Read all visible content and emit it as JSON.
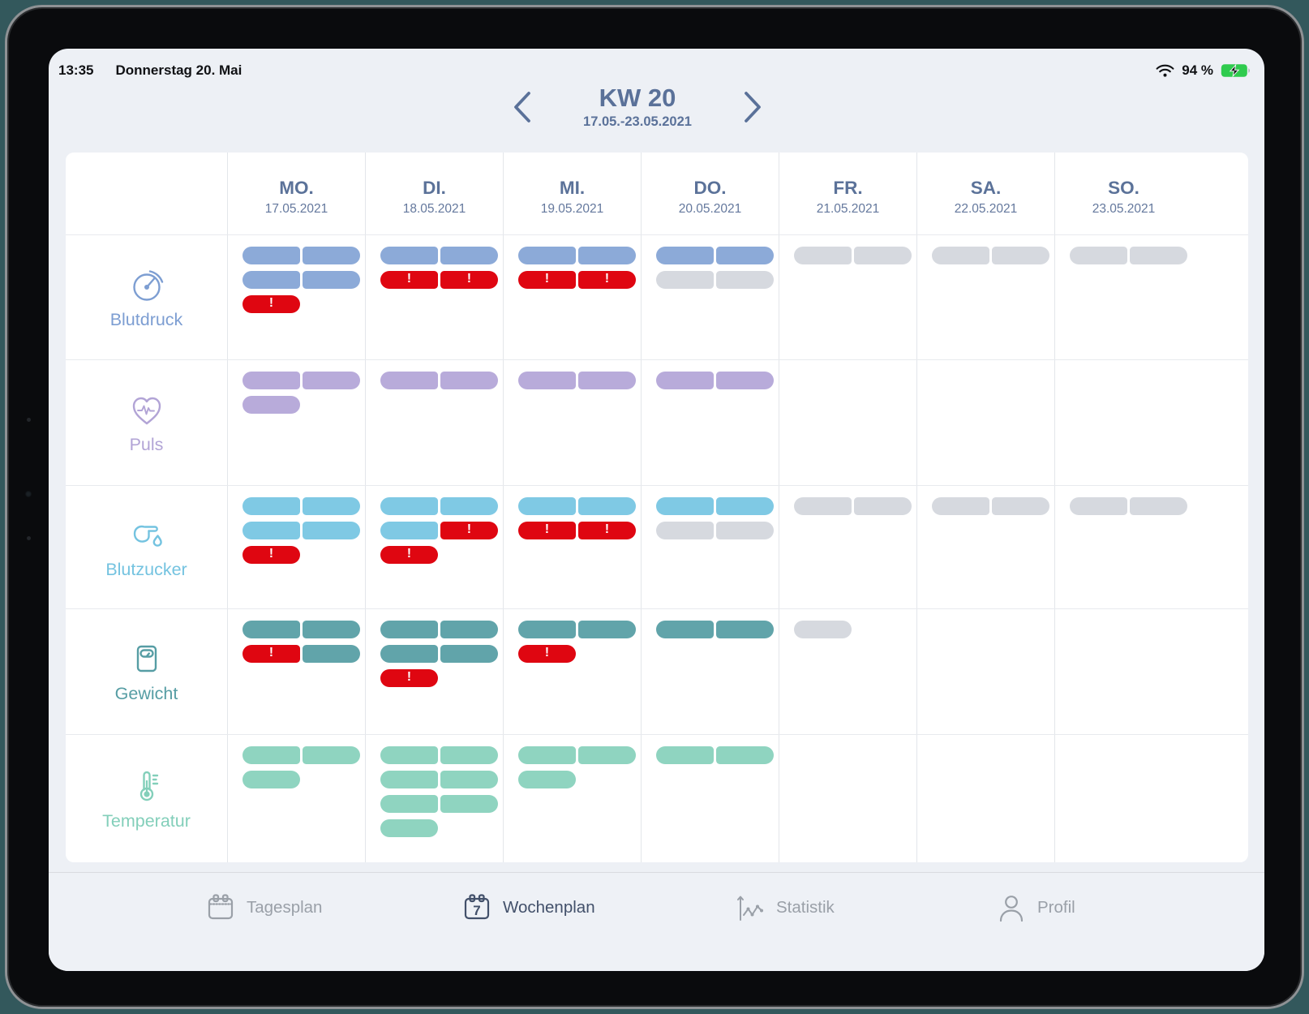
{
  "status_bar": {
    "time": "13:35",
    "date": "Donnerstag 20. Mai",
    "wifi_icon": "wifi-icon",
    "battery_percent": "94 %",
    "battery_icon": "battery-charging-icon",
    "battery_state": "charging"
  },
  "header": {
    "title": "KW 20",
    "range": "17.05.-23.05.2021",
    "prev_icon": "chevron-left-icon",
    "next_icon": "chevron-right-icon"
  },
  "alert_glyph": "!",
  "colors": {
    "alert": "#df0611",
    "planned": "#d6d9df",
    "header_text": "#5a7199",
    "screen_bg": "#edf0f5",
    "card_bg": "#ffffff",
    "tab_active": "#42506a",
    "tab_inactive": "#9aa0a8",
    "battery_green": "#2fcb4e"
  },
  "days": [
    {
      "label": "MO.",
      "date": "17.05.2021"
    },
    {
      "label": "DI.",
      "date": "18.05.2021"
    },
    {
      "label": "MI.",
      "date": "19.05.2021"
    },
    {
      "label": "DO.",
      "date": "20.05.2021"
    },
    {
      "label": "FR.",
      "date": "21.05.2021"
    },
    {
      "label": "SA.",
      "date": "22.05.2021"
    },
    {
      "label": "SO.",
      "date": "23.05.2021"
    }
  ],
  "rows": [
    {
      "id": "blutdruck",
      "label": "Blutdruck",
      "icon": "gauge-icon",
      "color": "#8caad8",
      "label_color": "#7d9ed2",
      "cells": [
        [
          [
            "ok",
            "ok"
          ],
          [
            "ok",
            "ok"
          ],
          [
            "alert"
          ]
        ],
        [
          [
            "ok",
            "ok"
          ],
          [
            "alert",
            "alert"
          ]
        ],
        [
          [
            "ok",
            "ok"
          ],
          [
            "alert",
            "alert"
          ]
        ],
        [
          [
            "ok",
            "ok"
          ],
          [
            "planned",
            "planned"
          ]
        ],
        [
          [
            "planned",
            "planned"
          ]
        ],
        [
          [
            "planned",
            "planned"
          ]
        ],
        [
          [
            "planned",
            "planned"
          ]
        ]
      ]
    },
    {
      "id": "puls",
      "label": "Puls",
      "icon": "heart-pulse-icon",
      "color": "#b8abda",
      "label_color": "#b2a4d6",
      "cells": [
        [
          [
            "ok",
            "ok"
          ],
          [
            "ok"
          ]
        ],
        [
          [
            "ok",
            "ok"
          ]
        ],
        [
          [
            "ok",
            "ok"
          ]
        ],
        [
          [
            "ok",
            "ok"
          ]
        ],
        [],
        [],
        []
      ]
    },
    {
      "id": "blutzucker",
      "label": "Blutzucker",
      "icon": "blood-drop-hand-icon",
      "color": "#7fc9e4",
      "label_color": "#74c3e0",
      "cells": [
        [
          [
            "ok",
            "ok"
          ],
          [
            "ok",
            "ok"
          ],
          [
            "alert"
          ]
        ],
        [
          [
            "ok",
            "ok"
          ],
          [
            "ok",
            "alert"
          ],
          [
            "alert"
          ]
        ],
        [
          [
            "ok",
            "ok"
          ],
          [
            "alert",
            "alert"
          ]
        ],
        [
          [
            "ok",
            "ok"
          ],
          [
            "planned",
            "planned"
          ]
        ],
        [
          [
            "planned",
            "planned"
          ]
        ],
        [
          [
            "planned",
            "planned"
          ]
        ],
        [
          [
            "planned",
            "planned"
          ]
        ]
      ]
    },
    {
      "id": "gewicht",
      "label": "Gewicht",
      "icon": "scale-icon",
      "color": "#61a4aa",
      "label_color": "#569da4",
      "cells": [
        [
          [
            "ok",
            "ok"
          ],
          [
            "alert",
            "ok"
          ]
        ],
        [
          [
            "ok",
            "ok"
          ],
          [
            "ok",
            "ok"
          ],
          [
            "alert"
          ]
        ],
        [
          [
            "ok",
            "ok"
          ],
          [
            "alert"
          ]
        ],
        [
          [
            "ok",
            "ok"
          ]
        ],
        [
          [
            "planned"
          ]
        ],
        [],
        []
      ]
    },
    {
      "id": "temperatur",
      "label": "Temperatur",
      "icon": "thermometer-icon",
      "color": "#8fd4c0",
      "label_color": "#83cfba",
      "cells": [
        [
          [
            "ok",
            "ok"
          ],
          [
            "ok"
          ]
        ],
        [
          [
            "ok",
            "ok"
          ],
          [
            "ok",
            "ok"
          ],
          [
            "ok",
            "ok"
          ],
          [
            "ok"
          ]
        ],
        [
          [
            "ok",
            "ok"
          ],
          [
            "ok"
          ]
        ],
        [
          [
            "ok",
            "ok"
          ]
        ],
        [],
        [],
        []
      ]
    }
  ],
  "tab_bar": [
    {
      "label": "Tagesplan",
      "icon": "calendar-icon",
      "active": false
    },
    {
      "label": "Wochenplan",
      "icon": "calendar-week-icon",
      "active": true
    },
    {
      "label": "Statistik",
      "icon": "chart-icon",
      "active": false
    },
    {
      "label": "Profil",
      "icon": "person-icon",
      "active": false
    }
  ]
}
